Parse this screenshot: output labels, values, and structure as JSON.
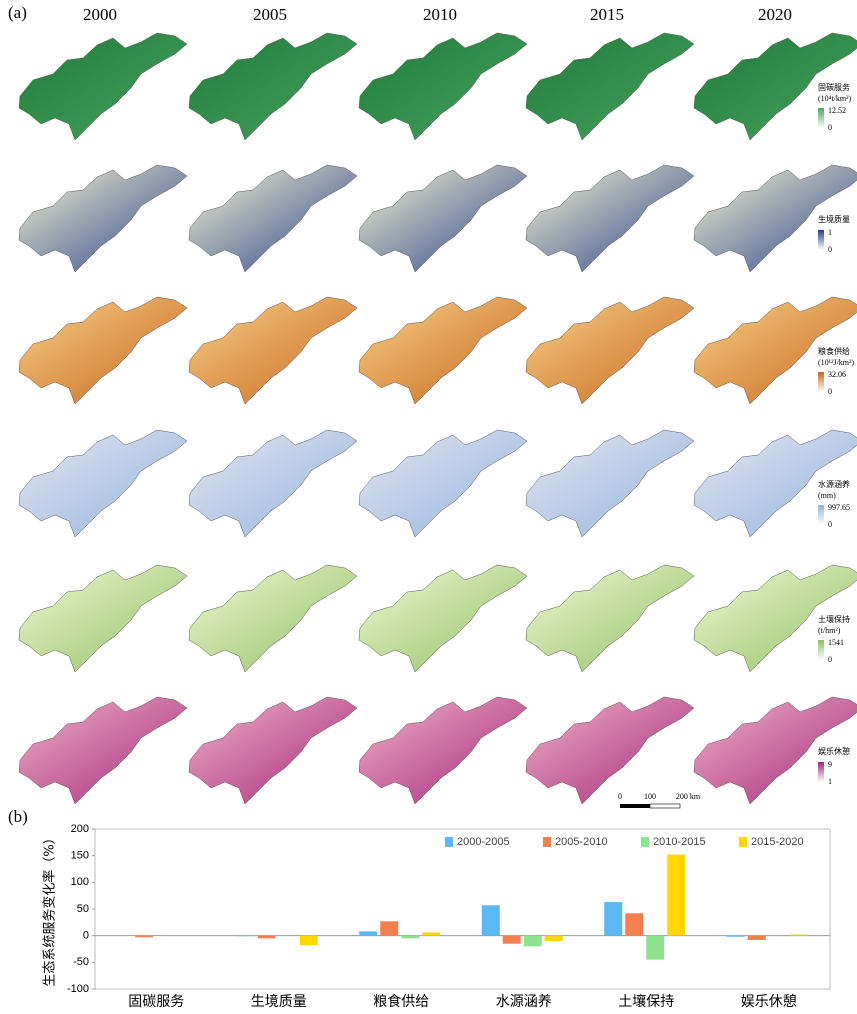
{
  "panel_a": {
    "label": "(a)",
    "years": [
      "2000",
      "2005",
      "2010",
      "2015",
      "2020"
    ],
    "rows": [
      {
        "title": "固碳服务",
        "unit": "(10⁴t/km²)",
        "max": 12.52,
        "min": 0
      },
      {
        "title": "生境质量",
        "max": 1,
        "min": 0
      },
      {
        "title": "粮食供给",
        "unit": "(10¹²J/km²)",
        "max": 32.06,
        "min": 0
      },
      {
        "title": "水源涵养",
        "unit": "(mm)",
        "max": 997.65,
        "min": 0
      },
      {
        "title": "土壤保持",
        "unit": "(t/hm²)",
        "max": 1541,
        "min": 0
      },
      {
        "title": "娱乐休憩",
        "max": 9,
        "min": 1
      }
    ],
    "scale_bar": [
      "0",
      "100",
      "200 km"
    ]
  },
  "chart_data": {
    "type": "bar",
    "panel_label": "(b)",
    "y_label": "生态系统服务变化率（%）",
    "categories": [
      "固碳服务",
      "生境质量",
      "粮食供给",
      "水源涵养",
      "土壤保持",
      "娱乐休憩"
    ],
    "series": [
      {
        "name": "2000-2005",
        "color": "#5bb8f2",
        "values": [
          0,
          -1,
          8,
          57,
          63,
          -2
        ]
      },
      {
        "name": "2005-2010",
        "color": "#f2804f",
        "values": [
          -3,
          -5,
          27,
          -15,
          42,
          -8
        ]
      },
      {
        "name": "2010-2015",
        "color": "#8fe38f",
        "values": [
          0,
          0,
          -5,
          -20,
          -45,
          0
        ]
      },
      {
        "name": "2015-2020",
        "color": "#ffd600",
        "values": [
          0,
          -18,
          6,
          -10,
          152,
          2
        ]
      }
    ],
    "ylim": [
      -100,
      200
    ],
    "yticks": [
      -100,
      -50,
      0,
      50,
      100,
      150,
      200
    ],
    "legend": "top-right"
  }
}
